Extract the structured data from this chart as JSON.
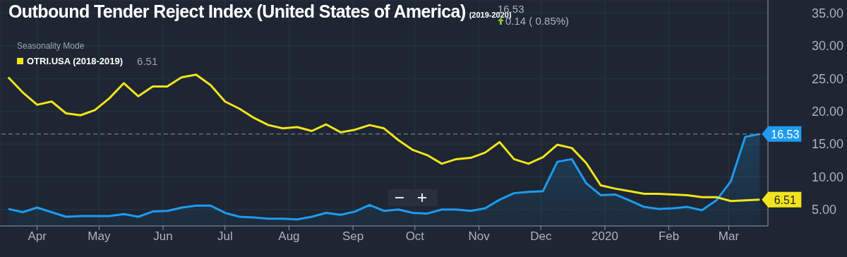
{
  "chart_data": {
    "type": "area",
    "title": "Outbound Tender Reject Index (United States of America)",
    "subtitle": "(2019-2020)",
    "legend_title": "Seasonality Mode",
    "annotations": [
      "16.53",
      "0.14 ( 0.85%)",
      "6.51"
    ],
    "x": [
      "2019-03-18",
      "2019-03-25",
      "2019-04-01",
      "2019-04-08",
      "2019-04-15",
      "2019-04-22",
      "2019-04-29",
      "2019-05-06",
      "2019-05-13",
      "2019-05-20",
      "2019-05-27",
      "2019-06-03",
      "2019-06-10",
      "2019-06-17",
      "2019-06-24",
      "2019-07-01",
      "2019-07-08",
      "2019-07-15",
      "2019-07-22",
      "2019-07-29",
      "2019-08-05",
      "2019-08-12",
      "2019-08-19",
      "2019-08-26",
      "2019-09-02",
      "2019-09-09",
      "2019-09-16",
      "2019-09-23",
      "2019-09-30",
      "2019-10-07",
      "2019-10-14",
      "2019-10-21",
      "2019-10-28",
      "2019-11-04",
      "2019-11-11",
      "2019-11-18",
      "2019-11-25",
      "2019-12-02",
      "2019-12-09",
      "2019-12-16",
      "2019-12-23",
      "2019-12-30",
      "2020-01-06",
      "2020-01-13",
      "2020-01-20",
      "2020-01-27",
      "2020-02-03",
      "2020-02-10",
      "2020-02-17",
      "2020-02-24",
      "2020-03-02",
      "2020-03-09",
      "2020-03-16"
    ],
    "series": [
      {
        "color": "#1e9bf0",
        "values": [
          5.1,
          4.6,
          5.3,
          4.6,
          3.9,
          4.0,
          4.0,
          4.0,
          4.3,
          3.9,
          4.7,
          4.8,
          5.3,
          5.6,
          5.6,
          4.5,
          3.9,
          3.8,
          3.6,
          3.6,
          3.5,
          3.9,
          4.5,
          4.2,
          4.7,
          5.7,
          4.8,
          5.0,
          4.5,
          4.4,
          5.0,
          5.0,
          4.8,
          5.2,
          6.5,
          7.5,
          7.7,
          7.8,
          12.3,
          12.7,
          9.0,
          7.2,
          7.3,
          6.4,
          5.4,
          5.1,
          5.2,
          5.4,
          4.9,
          6.4,
          9.3,
          16.1,
          16.53
        ],
        "value_labels": [
          null,
          null,
          null,
          null,
          null,
          null,
          null,
          null,
          null,
          null,
          null,
          null,
          null,
          null,
          null,
          null,
          null,
          null,
          null,
          null,
          null,
          null,
          null,
          null,
          null,
          null,
          null,
          null,
          null,
          null,
          null,
          null,
          null,
          null,
          null,
          null,
          null,
          null,
          null,
          null,
          null,
          null,
          null,
          null,
          null,
          null,
          null,
          null,
          null,
          null,
          null,
          null,
          "16.53"
        ]
      },
      {
        "type": "line",
        "name": "OTRI.USA (2018-2019)",
        "color": "#f2e41c",
        "values": [
          25.2,
          22.9,
          21.0,
          21.5,
          19.7,
          19.4,
          20.2,
          22.0,
          24.3,
          22.3,
          23.8,
          23.8,
          25.2,
          25.6,
          24.0,
          21.5,
          20.4,
          19.0,
          17.9,
          17.4,
          17.6,
          17.0,
          18.0,
          16.8,
          17.2,
          17.9,
          17.4,
          15.6,
          14.1,
          13.3,
          12.0,
          12.7,
          12.9,
          13.7,
          15.3,
          12.7,
          12.0,
          13.0,
          14.9,
          14.4,
          12.1,
          8.7,
          8.2,
          7.8,
          7.4,
          7.4,
          7.3,
          7.2,
          6.9,
          6.9,
          6.3,
          6.4,
          6.51
        ],
        "value_labels": [
          null,
          null,
          null,
          null,
          null,
          null,
          null,
          null,
          null,
          null,
          null,
          null,
          null,
          null,
          null,
          null,
          null,
          null,
          null,
          null,
          null,
          null,
          null,
          null,
          null,
          null,
          null,
          null,
          null,
          null,
          null,
          null,
          null,
          null,
          null,
          null,
          null,
          null,
          null,
          null,
          null,
          null,
          null,
          null,
          null,
          null,
          null,
          null,
          null,
          null,
          null,
          null,
          "6.51"
        ]
      }
    ],
    "xlim": [
      "2019-03-14",
      "2020-03-20"
    ],
    "xticks": [
      {
        "value": "2019-04-01",
        "label": "Apr"
      },
      {
        "value": "2019-05-01",
        "label": "May"
      },
      {
        "value": "2019-06-01",
        "label": "Jun"
      },
      {
        "value": "2019-07-01",
        "label": "Jul"
      },
      {
        "value": "2019-08-01",
        "label": "Aug"
      },
      {
        "value": "2019-09-01",
        "label": "Sep"
      },
      {
        "value": "2019-10-01",
        "label": "Oct"
      },
      {
        "value": "2019-11-01",
        "label": "Nov"
      },
      {
        "value": "2019-12-01",
        "label": "Dec"
      },
      {
        "value": "2020-01-01",
        "label": "2020"
      },
      {
        "value": "2020-02-01",
        "label": "Feb"
      },
      {
        "value": "2020-03-01",
        "label": "Mar"
      }
    ],
    "ylim": [
      2.5,
      37
    ],
    "yticks": [
      {
        "value": 5,
        "label": "5.00"
      },
      {
        "value": 10,
        "label": "10.00"
      },
      {
        "value": 15,
        "label": "15.00"
      },
      {
        "value": 20,
        "label": "20.00"
      },
      {
        "value": 25,
        "label": "25.00"
      },
      {
        "value": 30,
        "label": "30.00"
      },
      {
        "value": 35,
        "label": "35.00"
      }
    ],
    "ref_lines": [
      {
        "axis": "y",
        "value": 16.53,
        "color": "#8a95a3",
        "line_style": "dashed"
      }
    ],
    "grid": true,
    "legend": "top left",
    "marker": "none",
    "line_style": "solid"
  }
}
